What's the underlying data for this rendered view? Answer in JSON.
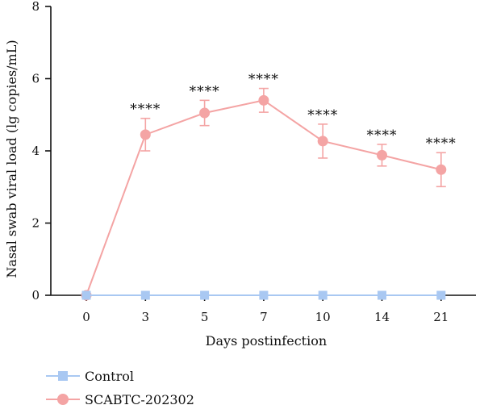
{
  "chart_data": {
    "type": "line",
    "xlabel": "Days postinfection",
    "ylabel": "Nasal swab viral load (lg copies/mL)",
    "categories": [
      "0",
      "3",
      "5",
      "7",
      "10",
      "14",
      "21"
    ],
    "ylim": [
      0,
      8
    ],
    "yticks": [
      "0",
      "2",
      "4",
      "6",
      "8"
    ],
    "grid": false,
    "legend_position": "bottom-left",
    "series": [
      {
        "name": "Control",
        "color": "#a9c8f2",
        "marker": "square",
        "values": [
          0,
          0,
          0,
          0,
          0,
          0,
          0
        ],
        "error": [
          0,
          0,
          0,
          0,
          0,
          0,
          0
        ]
      },
      {
        "name": "SCABTC-202302",
        "color": "#f4a4a4",
        "marker": "circle",
        "values": [
          0,
          4.45,
          5.05,
          5.4,
          4.27,
          3.88,
          3.48
        ],
        "error": [
          0,
          0.45,
          0.35,
          0.33,
          0.47,
          0.3,
          0.47
        ]
      }
    ],
    "annotations": [
      "",
      "****",
      "****",
      "****",
      "****",
      "****",
      "****"
    ]
  }
}
